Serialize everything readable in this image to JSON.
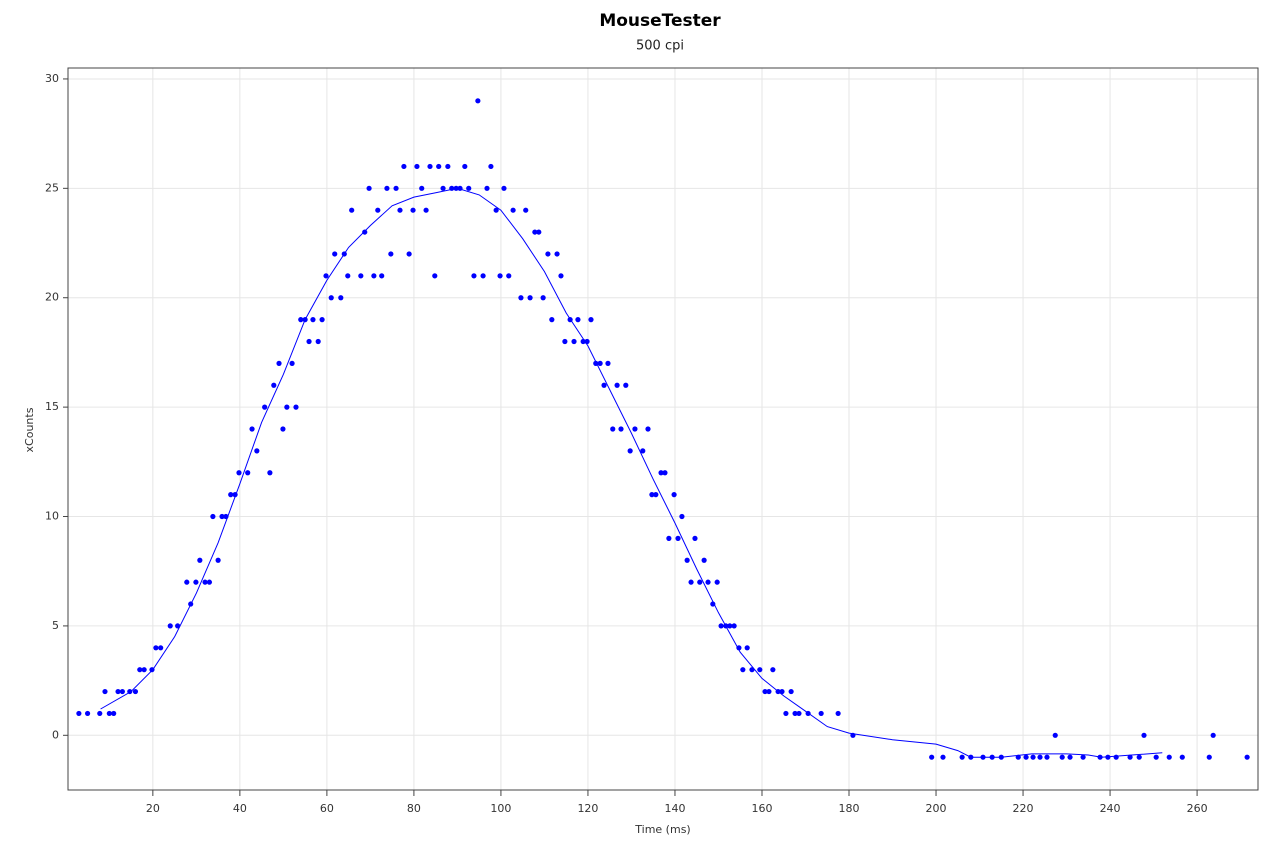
{
  "chart_data": {
    "type": "scatter",
    "title": "MouseTester",
    "subtitle": "500 cpi",
    "xlabel": "Time (ms)",
    "ylabel": "xCounts",
    "xlim": [
      0.5,
      274
    ],
    "ylim": [
      -2.5,
      30.5
    ],
    "xticks": [
      20,
      40,
      60,
      80,
      100,
      120,
      140,
      160,
      180,
      200,
      220,
      240,
      260
    ],
    "yticks": [
      0,
      5,
      10,
      15,
      20,
      25,
      30
    ],
    "grid": true,
    "series": [
      {
        "type": "scatter",
        "color": "#0000ff",
        "x": [
          3,
          5,
          7.8,
          9,
          10,
          11,
          12,
          13,
          14.7,
          16,
          17,
          18,
          19.8,
          20.7,
          21.8,
          24,
          25.7,
          27.8,
          28.7,
          29.9,
          30.8,
          32,
          33,
          33.8,
          35,
          35.9,
          36.8,
          37.9,
          38.9,
          39.8,
          41.8,
          42.8,
          43.9,
          45.7,
          46.9,
          47.8,
          49,
          49.9,
          50.8,
          52,
          52.9,
          54,
          55,
          55.9,
          56.8,
          58,
          58.9,
          59.8,
          61,
          61.8,
          63.2,
          64,
          64.8,
          65.7,
          67.8,
          68.7,
          69.7,
          70.8,
          71.7,
          72.6,
          73.8,
          74.7,
          75.9,
          76.8,
          77.7,
          78.9,
          79.8,
          80.7,
          81.8,
          82.8,
          83.7,
          84.8,
          85.7,
          86.7,
          87.8,
          88.7,
          89.7,
          90.6,
          91.7,
          92.6,
          93.8,
          94.7,
          95.9,
          96.8,
          97.7,
          98.9,
          99.8,
          100.7,
          101.8,
          102.8,
          104.6,
          105.7,
          106.7,
          107.8,
          108.7,
          109.7,
          110.8,
          111.7,
          112.9,
          113.8,
          114.7,
          115.9,
          116.8,
          117.7,
          118.9,
          119.8,
          120.7,
          121.8,
          122.8,
          123.7,
          124.6,
          125.7,
          126.7,
          127.6,
          128.7,
          129.7,
          130.8,
          132.6,
          133.8,
          134.7,
          135.6,
          136.8,
          137.7,
          138.6,
          139.8,
          140.7,
          141.6,
          142.8,
          143.7,
          144.6,
          145.7,
          146.7,
          147.6,
          148.7,
          149.7,
          150.6,
          151.7,
          152.6,
          153.6,
          154.7,
          155.6,
          156.6,
          157.7,
          159.5,
          160.7,
          161.6,
          162.5,
          163.7,
          164.6,
          165.5,
          166.7,
          167.6,
          168.5,
          170.6,
          173.6,
          177.5,
          180.9,
          199,
          201.6,
          206,
          208,
          210.8,
          212.9,
          215,
          218.9,
          220.7,
          222.3,
          223.9,
          225.5,
          227.4,
          229,
          230.8,
          233.8,
          237.7,
          239.5,
          241.4,
          244.6,
          246.7,
          247.8,
          250.6,
          253.6,
          256.6,
          262.8,
          263.7,
          271.5
        ],
        "values": [
          1,
          1,
          1,
          2,
          1,
          1,
          2,
          2,
          2,
          2,
          3,
          3,
          3,
          4,
          4,
          5,
          5,
          7,
          6,
          7,
          8,
          7,
          7,
          10,
          8,
          10,
          10,
          11,
          11,
          12,
          12,
          14,
          13,
          15,
          12,
          16,
          17,
          14,
          15,
          17,
          15,
          19,
          19,
          18,
          19,
          18,
          19,
          21,
          20,
          22,
          20,
          22,
          21,
          24,
          21,
          23,
          25,
          21,
          24,
          21,
          25,
          22,
          25,
          24,
          26,
          22,
          24,
          26,
          25,
          24,
          26,
          21,
          26,
          25,
          26,
          25,
          25,
          25,
          26,
          25,
          21,
          29,
          21,
          25,
          26,
          24,
          21,
          25,
          21,
          24,
          20,
          24,
          20,
          23,
          23,
          20,
          22,
          19,
          22,
          21,
          18,
          19,
          18,
          19,
          18,
          18,
          19,
          17,
          17,
          16,
          17,
          14,
          16,
          14,
          16,
          13,
          14,
          13,
          14,
          11,
          11,
          12,
          12,
          9,
          11,
          9,
          10,
          8,
          7,
          9,
          7,
          8,
          7,
          6,
          7,
          5,
          5,
          5,
          5,
          4,
          3,
          4,
          3,
          3,
          2,
          2,
          3,
          2,
          2,
          1,
          2,
          1,
          1,
          1,
          1,
          1,
          0,
          -1,
          -1,
          -1,
          -1,
          -1,
          -1,
          -1,
          -1,
          -1,
          -1,
          -1,
          -1,
          0,
          -1,
          -1,
          -1,
          -1,
          -1,
          -1,
          -1,
          -1,
          0,
          -1,
          -1,
          -1,
          -1,
          0,
          -1
        ]
      },
      {
        "type": "line",
        "color": "#0000ff",
        "x": [
          8,
          15,
          20,
          25,
          30,
          35,
          40,
          45,
          50,
          55,
          60,
          65,
          70,
          75,
          80,
          85,
          90,
          95,
          100,
          105,
          110,
          115,
          120,
          125,
          130,
          135,
          140,
          145,
          150,
          155,
          160,
          165,
          170,
          175,
          180,
          190,
          200,
          205,
          208,
          215,
          222,
          230,
          235,
          238,
          245,
          252
        ],
        "values": [
          1.2,
          2,
          3,
          4.5,
          6.5,
          8.8,
          11.5,
          14.3,
          16.5,
          19,
          20.8,
          22.3,
          23.3,
          24.2,
          24.6,
          24.8,
          25,
          24.7,
          24,
          22.7,
          21.2,
          19.3,
          17.8,
          15.8,
          13.8,
          11.7,
          9.7,
          7.6,
          5.6,
          3.8,
          2.6,
          1.8,
          1.1,
          0.4,
          0.1,
          -0.2,
          -0.4,
          -0.7,
          -1,
          -1,
          -0.85,
          -0.85,
          -0.9,
          -1,
          -0.9,
          -0.8
        ]
      }
    ]
  }
}
